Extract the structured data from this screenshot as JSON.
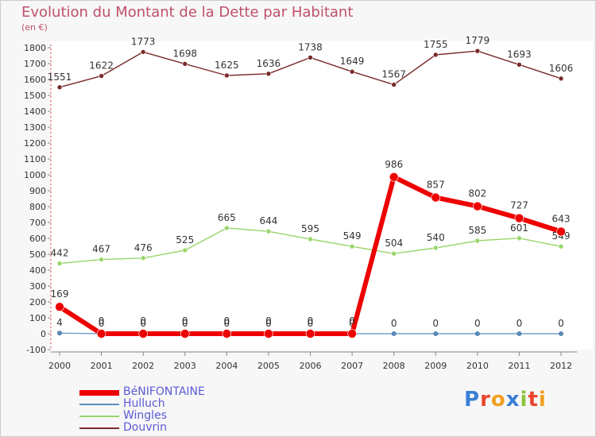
{
  "title": "Evolution du Montant de la Dette par Habitant",
  "unit": "(en €)",
  "logo": {
    "text": "Proxiti",
    "letter_colors": [
      "#3a7fd5",
      "#e8462e",
      "#f0a020",
      "#3a7fd5",
      "#8cc43c",
      "#e8462e",
      "#f0a020"
    ]
  },
  "chart_data": {
    "type": "line",
    "x": [
      "2000",
      "2001",
      "2002",
      "2003",
      "2004",
      "2005",
      "2006",
      "2007",
      "2008",
      "2009",
      "2010",
      "2011",
      "2012"
    ],
    "ylim": [
      -100,
      1800
    ],
    "yticks": [
      -100,
      0,
      100,
      200,
      300,
      400,
      500,
      600,
      700,
      800,
      900,
      1000,
      1100,
      1200,
      1300,
      1400,
      1500,
      1600,
      1700,
      1800
    ],
    "grid": false,
    "legend": "bottom-left",
    "series": [
      {
        "name": "Douvrin",
        "color": "#7a2a2a",
        "values": [
          1551,
          1622,
          1773,
          1698,
          1625,
          1636,
          1738,
          1649,
          1567,
          1755,
          1779,
          1693,
          1606
        ]
      },
      {
        "name": "Wingles",
        "color": "#9ad66a",
        "values": [
          442,
          467,
          476,
          525,
          665,
          644,
          595,
          549,
          504,
          540,
          585,
          601,
          549
        ]
      },
      {
        "name": "Hulluch",
        "color": "#5a8fc0",
        "values": [
          4,
          0,
          0,
          0,
          0,
          0,
          0,
          0,
          0,
          0,
          0,
          0,
          0
        ]
      },
      {
        "name": "BéNIFONTAINE",
        "color": "#ee0000",
        "values": [
          169,
          0,
          0,
          0,
          0,
          0,
          0,
          0,
          986,
          857,
          802,
          727,
          643
        ]
      }
    ]
  }
}
